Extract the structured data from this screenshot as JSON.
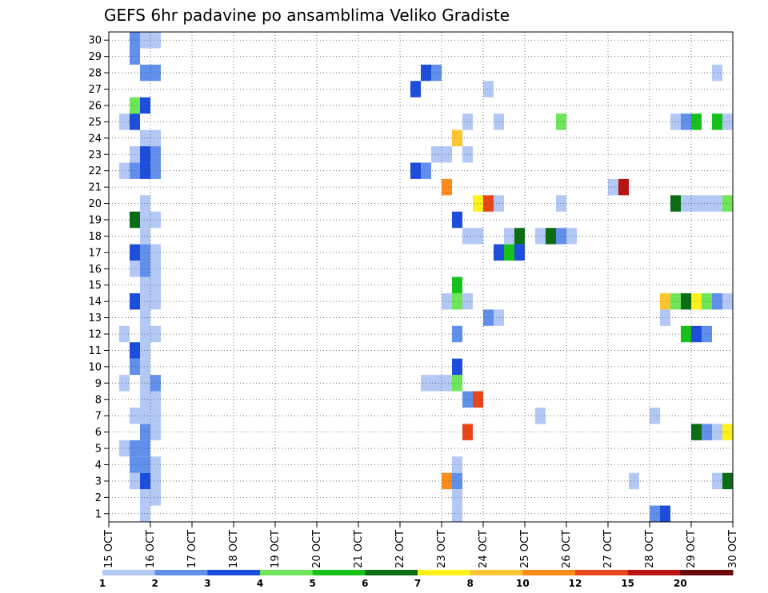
{
  "chart_data": {
    "type": "heatmap",
    "title": "GEFS 6hr padavine po ansamblima Veliko Gradiste",
    "xlabel": "",
    "ylabel": "",
    "x_ticks": [
      "15 OCT",
      "16 OCT",
      "17 OCT",
      "18 OCT",
      "19 OCT",
      "20 OCT",
      "21 OCT",
      "22 OCT",
      "23 OCT",
      "24 OCT",
      "25 OCT",
      "26 OCT",
      "27 OCT",
      "28 OCT",
      "29 OCT",
      "30 OCT"
    ],
    "xlim": [
      0,
      15
    ],
    "y_ticks": [
      "1",
      "2",
      "3",
      "4",
      "5",
      "6",
      "7",
      "8",
      "9",
      "10",
      "11",
      "12",
      "13",
      "14",
      "15",
      "16",
      "17",
      "18",
      "19",
      "20",
      "21",
      "22",
      "23",
      "24",
      "25",
      "26",
      "27",
      "28",
      "29",
      "30"
    ],
    "ylim": [
      0.5,
      30.5
    ],
    "grid": true,
    "legend_position": "bottom",
    "legend_levels": [
      "1",
      "2",
      "3",
      "4",
      "5",
      "6",
      "7",
      "8",
      "10",
      "12",
      "15",
      "20"
    ],
    "legend_colors": [
      "#b4c8f5",
      "#6090ec",
      "#1c4edb",
      "#6ee65a",
      "#16c21a",
      "#0a6c14",
      "#fff21a",
      "#ffc432",
      "#ff8c1a",
      "#e8461a",
      "#b81414",
      "#6a0a0a"
    ],
    "cells": [
      {
        "d": 0.5,
        "m": 0,
        "c": 2
      },
      {
        "d": 0.75,
        "m": 0,
        "c": 1
      },
      {
        "d": 1.25,
        "m": 0,
        "c": 1
      },
      {
        "d": 1.0,
        "m": 1,
        "c": 1
      },
      {
        "d": 1.0,
        "m": 2,
        "c": 1
      },
      {
        "d": 1.25,
        "m": 2,
        "c": 1
      },
      {
        "d": 0.75,
        "m": 3,
        "c": 1
      },
      {
        "d": 1.0,
        "m": 3,
        "c": 3
      },
      {
        "d": 1.25,
        "m": 3,
        "c": 1
      },
      {
        "d": 0.75,
        "m": 4,
        "c": 2
      },
      {
        "d": 1.0,
        "m": 4,
        "c": 2
      },
      {
        "d": 1.25,
        "m": 4,
        "c": 1
      },
      {
        "d": 0.5,
        "m": 5,
        "c": 1
      },
      {
        "d": 0.75,
        "m": 5,
        "c": 2
      },
      {
        "d": 1.0,
        "m": 5,
        "c": 2
      },
      {
        "d": 1.0,
        "m": 6,
        "c": 2
      },
      {
        "d": 1.25,
        "m": 6,
        "c": 1
      },
      {
        "d": 0.75,
        "m": 7,
        "c": 1
      },
      {
        "d": 1.0,
        "m": 7,
        "c": 1
      },
      {
        "d": 1.25,
        "m": 7,
        "c": 1
      },
      {
        "d": 1.0,
        "m": 8,
        "c": 1
      },
      {
        "d": 1.25,
        "m": 8,
        "c": 1
      },
      {
        "d": 0.5,
        "m": 9,
        "c": 1
      },
      {
        "d": 1.0,
        "m": 9,
        "c": 1
      },
      {
        "d": 1.25,
        "m": 9,
        "c": 2
      },
      {
        "d": 1.0,
        "m": 10,
        "c": 1
      },
      {
        "d": 0.75,
        "m": 10,
        "c": 2
      },
      {
        "d": 0.75,
        "m": 11,
        "c": 3
      },
      {
        "d": 1.0,
        "m": 11,
        "c": 1
      },
      {
        "d": 0.5,
        "m": 12,
        "c": 1
      },
      {
        "d": 1.0,
        "m": 12,
        "c": 1
      },
      {
        "d": 1.25,
        "m": 12,
        "c": 1
      },
      {
        "d": 1.0,
        "m": 13,
        "c": 1
      },
      {
        "d": 0.75,
        "m": 14,
        "c": 3
      },
      {
        "d": 1.0,
        "m": 14,
        "c": 1
      },
      {
        "d": 1.25,
        "m": 14,
        "c": 1
      },
      {
        "d": 1.0,
        "m": 15,
        "c": 1
      },
      {
        "d": 1.25,
        "m": 15,
        "c": 1
      },
      {
        "d": 0.75,
        "m": 16,
        "c": 1
      },
      {
        "d": 1.0,
        "m": 16,
        "c": 2
      },
      {
        "d": 1.25,
        "m": 16,
        "c": 1
      },
      {
        "d": 0.75,
        "m": 17,
        "c": 3
      },
      {
        "d": 1.0,
        "m": 17,
        "c": 2
      },
      {
        "d": 1.25,
        "m": 17,
        "c": 1
      },
      {
        "d": 1.0,
        "m": 18,
        "c": 1
      },
      {
        "d": 0.75,
        "m": 19,
        "c": 6
      },
      {
        "d": 1.0,
        "m": 19,
        "c": 1
      },
      {
        "d": 1.25,
        "m": 19,
        "c": 1
      },
      {
        "d": 1.0,
        "m": 20,
        "c": 1
      },
      {
        "d": 0.5,
        "m": 22,
        "c": 1
      },
      {
        "d": 0.75,
        "m": 22,
        "c": 2
      },
      {
        "d": 1.0,
        "m": 22,
        "c": 3
      },
      {
        "d": 1.25,
        "m": 22,
        "c": 2
      },
      {
        "d": 0.75,
        "m": 23,
        "c": 1
      },
      {
        "d": 1.0,
        "m": 23,
        "c": 3
      },
      {
        "d": 1.25,
        "m": 23,
        "c": 2
      },
      {
        "d": 1.0,
        "m": 24,
        "c": 1
      },
      {
        "d": 1.25,
        "m": 24,
        "c": 1
      },
      {
        "d": 0.5,
        "m": 25,
        "c": 1
      },
      {
        "d": 0.75,
        "m": 25,
        "c": 3
      },
      {
        "d": 0.75,
        "m": 26,
        "c": 4
      },
      {
        "d": 1.0,
        "m": 26,
        "c": 3
      },
      {
        "d": 1.0,
        "m": 28,
        "c": 2
      },
      {
        "d": 1.25,
        "m": 28,
        "c": 2
      },
      {
        "d": 0.75,
        "m": 29,
        "c": 2
      },
      {
        "d": 0.75,
        "m": 30,
        "c": 2
      },
      {
        "d": 1.0,
        "m": 30,
        "c": 1
      },
      {
        "d": 1.25,
        "m": 30,
        "c": 1
      },
      {
        "d": 7.5,
        "m": 22,
        "c": 3
      },
      {
        "d": 7.75,
        "m": 22,
        "c": 2
      },
      {
        "d": 7.5,
        "m": 27,
        "c": 3
      },
      {
        "d": 7.75,
        "m": 9,
        "c": 1
      },
      {
        "d": 7.75,
        "m": 28,
        "c": 3
      },
      {
        "d": 8.0,
        "m": 28,
        "c": 2
      },
      {
        "d": 8.0,
        "m": 23,
        "c": 1
      },
      {
        "d": 8.25,
        "m": 23,
        "c": 1
      },
      {
        "d": 8.0,
        "m": 9,
        "c": 1
      },
      {
        "d": 8.25,
        "m": 9,
        "c": 1
      },
      {
        "d": 8.5,
        "m": 9,
        "c": 4
      },
      {
        "d": 8.25,
        "m": 21,
        "c": 9
      },
      {
        "d": 8.25,
        "m": 14,
        "c": 1
      },
      {
        "d": 8.5,
        "m": 14,
        "c": 4
      },
      {
        "d": 8.25,
        "m": 3,
        "c": 9
      },
      {
        "d": 8.5,
        "m": 3,
        "c": 2
      },
      {
        "d": 8.5,
        "m": 1,
        "c": 1
      },
      {
        "d": 8.5,
        "m": 2,
        "c": 1
      },
      {
        "d": 8.5,
        "m": 4,
        "c": 1
      },
      {
        "d": 8.5,
        "m": 10,
        "c": 3
      },
      {
        "d": 8.5,
        "m": 12,
        "c": 2
      },
      {
        "d": 8.5,
        "m": 15,
        "c": 5
      },
      {
        "d": 8.5,
        "m": 19,
        "c": 3
      },
      {
        "d": 8.5,
        "m": 24,
        "c": 8
      },
      {
        "d": 8.75,
        "m": 6,
        "c": 10
      },
      {
        "d": 8.75,
        "m": 8,
        "c": 2
      },
      {
        "d": 9.0,
        "m": 8,
        "c": 10
      },
      {
        "d": 8.75,
        "m": 14,
        "c": 1
      },
      {
        "d": 8.75,
        "m": 25,
        "c": 1
      },
      {
        "d": 8.75,
        "m": 23,
        "c": 1
      },
      {
        "d": 8.75,
        "m": 18,
        "c": 1
      },
      {
        "d": 9.0,
        "m": 18,
        "c": 1
      },
      {
        "d": 9.0,
        "m": 20,
        "c": 7
      },
      {
        "d": 9.25,
        "m": 20,
        "c": 10
      },
      {
        "d": 9.5,
        "m": 20,
        "c": 1
      },
      {
        "d": 9.25,
        "m": 13,
        "c": 2
      },
      {
        "d": 9.5,
        "m": 13,
        "c": 1
      },
      {
        "d": 9.25,
        "m": 27,
        "c": 1
      },
      {
        "d": 9.5,
        "m": 25,
        "c": 1
      },
      {
        "d": 9.5,
        "m": 17,
        "c": 3
      },
      {
        "d": 9.75,
        "m": 17,
        "c": 5
      },
      {
        "d": 10.0,
        "m": 17,
        "c": 3
      },
      {
        "d": 9.75,
        "m": 18,
        "c": 1
      },
      {
        "d": 10.0,
        "m": 18,
        "c": 6
      },
      {
        "d": 10.5,
        "m": 7,
        "c": 1
      },
      {
        "d": 10.5,
        "m": 18,
        "c": 1
      },
      {
        "d": 10.75,
        "m": 18,
        "c": 6
      },
      {
        "d": 11.0,
        "m": 18,
        "c": 2
      },
      {
        "d": 11.25,
        "m": 18,
        "c": 1
      },
      {
        "d": 11.0,
        "m": 20,
        "c": 1
      },
      {
        "d": 11.0,
        "m": 25,
        "c": 4
      },
      {
        "d": 12.25,
        "m": 21,
        "c": 1
      },
      {
        "d": 12.5,
        "m": 21,
        "c": 11
      },
      {
        "d": 12.75,
        "m": 3,
        "c": 1
      },
      {
        "d": 13.25,
        "m": 7,
        "c": 1
      },
      {
        "d": 13.25,
        "m": 1,
        "c": 2
      },
      {
        "d": 13.5,
        "m": 1,
        "c": 3
      },
      {
        "d": 13.5,
        "m": 13,
        "c": 1
      },
      {
        "d": 13.5,
        "m": 14,
        "c": 8
      },
      {
        "d": 13.75,
        "m": 14,
        "c": 4
      },
      {
        "d": 14.0,
        "m": 14,
        "c": 6
      },
      {
        "d": 14.25,
        "m": 14,
        "c": 7
      },
      {
        "d": 14.5,
        "m": 14,
        "c": 4
      },
      {
        "d": 14.75,
        "m": 14,
        "c": 2
      },
      {
        "d": 15.0,
        "m": 14,
        "c": 1
      },
      {
        "d": 13.75,
        "m": 20,
        "c": 6
      },
      {
        "d": 14.0,
        "m": 20,
        "c": 1
      },
      {
        "d": 14.25,
        "m": 20,
        "c": 1
      },
      {
        "d": 14.5,
        "m": 20,
        "c": 1
      },
      {
        "d": 14.75,
        "m": 20,
        "c": 1
      },
      {
        "d": 15.0,
        "m": 20,
        "c": 4
      },
      {
        "d": 13.75,
        "m": 25,
        "c": 1
      },
      {
        "d": 14.0,
        "m": 25,
        "c": 2
      },
      {
        "d": 14.25,
        "m": 25,
        "c": 5
      },
      {
        "d": 14.75,
        "m": 25,
        "c": 5
      },
      {
        "d": 15.0,
        "m": 25,
        "c": 1
      },
      {
        "d": 14.0,
        "m": 12,
        "c": 5
      },
      {
        "d": 14.25,
        "m": 12,
        "c": 3
      },
      {
        "d": 14.5,
        "m": 12,
        "c": 2
      },
      {
        "d": 14.25,
        "m": 6,
        "c": 6
      },
      {
        "d": 14.5,
        "m": 6,
        "c": 2
      },
      {
        "d": 14.75,
        "m": 6,
        "c": 1
      },
      {
        "d": 15.0,
        "m": 6,
        "c": 7
      },
      {
        "d": 14.75,
        "m": 28,
        "c": 1
      },
      {
        "d": 14.75,
        "m": 3,
        "c": 1
      },
      {
        "d": 15.0,
        "m": 3,
        "c": 6
      }
    ]
  }
}
